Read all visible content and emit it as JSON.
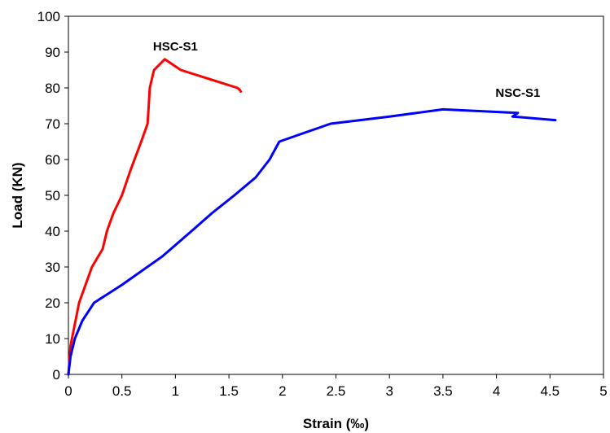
{
  "chart_data": {
    "type": "line",
    "title": "",
    "xlabel": "Strain (‰)",
    "ylabel": "Load (KN)",
    "xlim": [
      0,
      5
    ],
    "ylim": [
      0,
      100
    ],
    "x_ticks": [
      "0",
      "0.5",
      "1",
      "1.5",
      "2",
      "2.5",
      "3",
      "3.5",
      "4",
      "4.5",
      "5"
    ],
    "y_ticks": [
      "0",
      "10",
      "20",
      "30",
      "40",
      "50",
      "60",
      "70",
      "80",
      "90",
      "100"
    ],
    "grid": false,
    "legend": "none",
    "series": [
      {
        "name": "HSC-S1",
        "color": "#ff0000",
        "x": [
          0,
          0.02,
          0.1,
          0.22,
          0.32,
          0.36,
          0.42,
          0.5,
          0.58,
          0.68,
          0.74,
          0.75,
          0.76,
          0.8,
          0.9,
          1.05,
          1.58,
          1.6,
          1.61
        ],
        "y": [
          0,
          8,
          20,
          30,
          35,
          40,
          45,
          50,
          57,
          65,
          70,
          75,
          80,
          85,
          88,
          85,
          80,
          79.5,
          79
        ]
      },
      {
        "name": "NSC-S1",
        "color": "#0000ff",
        "x": [
          0,
          0.02,
          0.06,
          0.13,
          0.24,
          0.5,
          0.88,
          1.15,
          1.34,
          1.55,
          1.75,
          1.88,
          1.97,
          2.45,
          3.0,
          3.5,
          4.2,
          4.15,
          4.55
        ],
        "y": [
          0,
          5,
          10,
          15,
          20,
          25,
          33,
          40,
          45,
          50,
          55,
          60,
          65,
          70,
          72,
          74,
          73,
          72,
          71
        ]
      }
    ]
  }
}
